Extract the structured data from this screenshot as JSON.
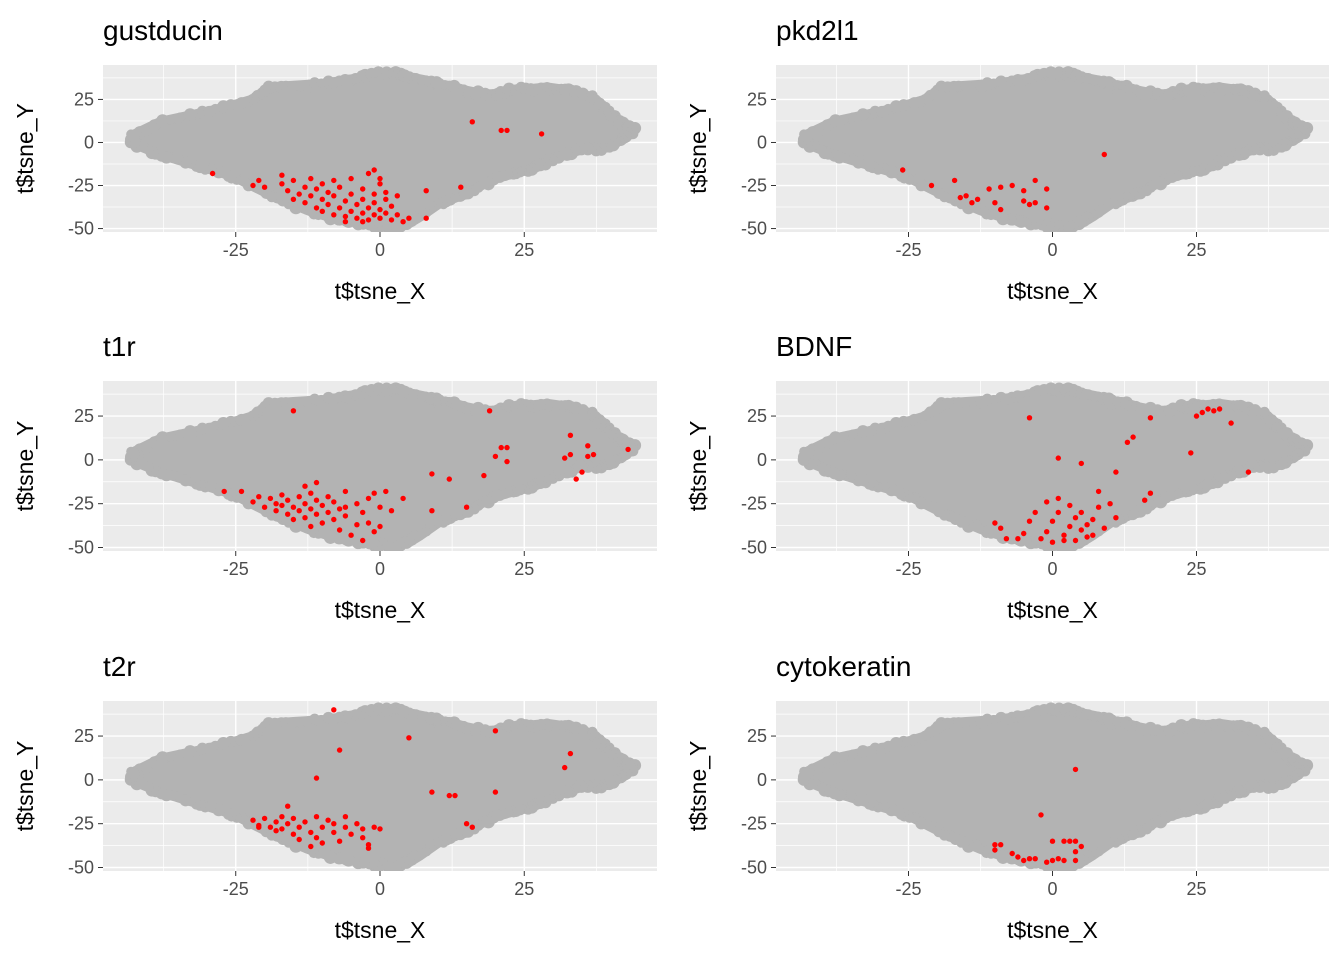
{
  "figure": {
    "background": "#FFFFFF",
    "panel_background": "#EBEBEB",
    "grid_color": "#FFFFFF",
    "background_cloud_color": "#B3B3B3",
    "highlight_color": "#FF0000"
  },
  "chart_data": [
    {
      "type": "scatter",
      "title": "gustducin",
      "xlabel": "t$tsne_X",
      "ylabel": "t$tsne_Y",
      "xlim": [
        -48,
        48
      ],
      "ylim": [
        -52,
        45
      ],
      "xticks": [
        -25,
        0,
        25
      ],
      "xtick_labels": [
        "-25",
        "0",
        "25"
      ],
      "yticks": [
        -50,
        -25,
        0,
        25
      ],
      "ytick_labels": [
        "-50",
        "-25",
        "0",
        "25"
      ],
      "grid": true,
      "highlighted_points": [
        [
          -29,
          -18
        ],
        [
          -22,
          -25
        ],
        [
          -21,
          -22
        ],
        [
          -20,
          -26
        ],
        [
          -17,
          -24
        ],
        [
          -17,
          -19
        ],
        [
          -16,
          -28
        ],
        [
          -15,
          -33
        ],
        [
          -15,
          -22
        ],
        [
          -14,
          -30
        ],
        [
          -13,
          -35
        ],
        [
          -13,
          -26
        ],
        [
          -12,
          -21
        ],
        [
          -12,
          -31
        ],
        [
          -11,
          -38
        ],
        [
          -11,
          -27
        ],
        [
          -10,
          -24
        ],
        [
          -10,
          -33
        ],
        [
          -10,
          -40
        ],
        [
          -9,
          -29
        ],
        [
          -9,
          -36
        ],
        [
          -8,
          -22
        ],
        [
          -8,
          -42
        ],
        [
          -8,
          -31
        ],
        [
          -7,
          -38
        ],
        [
          -7,
          -26
        ],
        [
          -6,
          -34
        ],
        [
          -6,
          -43
        ],
        [
          -5,
          -30
        ],
        [
          -5,
          -40
        ],
        [
          -5,
          -21
        ],
        [
          -4,
          -36
        ],
        [
          -4,
          -44
        ],
        [
          -3,
          -27
        ],
        [
          -3,
          -33
        ],
        [
          -3,
          -41
        ],
        [
          -2,
          -18
        ],
        [
          -2,
          -38
        ],
        [
          -2,
          -45
        ],
        [
          -1,
          -30
        ],
        [
          -1,
          -35
        ],
        [
          -1,
          -42
        ],
        [
          0,
          -24
        ],
        [
          0,
          -39
        ],
        [
          0,
          -44
        ],
        [
          1,
          -33
        ],
        [
          1,
          -29
        ],
        [
          1,
          -41
        ],
        [
          2,
          -37
        ],
        [
          2,
          -45
        ],
        [
          3,
          -31
        ],
        [
          3,
          -42
        ],
        [
          4,
          -46
        ],
        [
          5,
          -44
        ],
        [
          8,
          -28
        ],
        [
          8,
          -44
        ],
        [
          14,
          -26
        ],
        [
          16,
          12
        ],
        [
          21,
          7
        ],
        [
          22,
          7
        ],
        [
          28,
          5
        ],
        [
          -1,
          -16
        ],
        [
          0,
          -21
        ],
        [
          -3,
          -46
        ],
        [
          -6,
          -46
        ]
      ]
    },
    {
      "type": "scatter",
      "title": "pkd2l1",
      "xlabel": "t$tsne_X",
      "ylabel": "t$tsne_Y",
      "xlim": [
        -48,
        48
      ],
      "ylim": [
        -52,
        45
      ],
      "xticks": [
        -25,
        0,
        25
      ],
      "xtick_labels": [
        "-25",
        "0",
        "25"
      ],
      "yticks": [
        -50,
        -25,
        0,
        25
      ],
      "ytick_labels": [
        "-50",
        "-25",
        "0",
        "25"
      ],
      "grid": true,
      "highlighted_points": [
        [
          -26,
          -16
        ],
        [
          -21,
          -25
        ],
        [
          -17,
          -22
        ],
        [
          -16,
          -32
        ],
        [
          -15,
          -31
        ],
        [
          -14,
          -35
        ],
        [
          -11,
          -27
        ],
        [
          -10,
          -35
        ],
        [
          -9,
          -26
        ],
        [
          -9,
          -39
        ],
        [
          -7,
          -25
        ],
        [
          -5,
          -28
        ],
        [
          -5,
          -34
        ],
        [
          -4,
          -36
        ],
        [
          -3,
          -22
        ],
        [
          -3,
          -35
        ],
        [
          -1,
          -27
        ],
        [
          -1,
          -38
        ],
        [
          9,
          -7
        ],
        [
          -13,
          -33
        ]
      ]
    },
    {
      "type": "scatter",
      "title": "t1r",
      "xlabel": "t$tsne_X",
      "ylabel": "t$tsne_Y",
      "xlim": [
        -48,
        48
      ],
      "ylim": [
        -52,
        45
      ],
      "xticks": [
        -25,
        0,
        25
      ],
      "xtick_labels": [
        "-25",
        "0",
        "25"
      ],
      "yticks": [
        -50,
        -25,
        0,
        25
      ],
      "ytick_labels": [
        "-50",
        "-25",
        "0",
        "25"
      ],
      "grid": true,
      "highlighted_points": [
        [
          -27,
          -18
        ],
        [
          -24,
          -18
        ],
        [
          -22,
          -24
        ],
        [
          -21,
          -21
        ],
        [
          -20,
          -27
        ],
        [
          -19,
          -22
        ],
        [
          -18,
          -25
        ],
        [
          -18,
          -29
        ],
        [
          -17,
          -20
        ],
        [
          -17,
          -26
        ],
        [
          -16,
          -31
        ],
        [
          -16,
          -23
        ],
        [
          -15,
          -27
        ],
        [
          -15,
          -34
        ],
        [
          -14,
          -21
        ],
        [
          -14,
          -29
        ],
        [
          -13,
          -25
        ],
        [
          -13,
          -33
        ],
        [
          -12,
          -19
        ],
        [
          -12,
          -28
        ],
        [
          -12,
          -38
        ],
        [
          -11,
          -23
        ],
        [
          -11,
          -31
        ],
        [
          -10,
          -26
        ],
        [
          -10,
          -36
        ],
        [
          -9,
          -21
        ],
        [
          -9,
          -30
        ],
        [
          -8,
          -34
        ],
        [
          -8,
          -24
        ],
        [
          -7,
          -28
        ],
        [
          -7,
          -40
        ],
        [
          -6,
          -18
        ],
        [
          -6,
          -32
        ],
        [
          -5,
          -43
        ],
        [
          -4,
          -25
        ],
        [
          -4,
          -37
        ],
        [
          -3,
          -30
        ],
        [
          -3,
          -46
        ],
        [
          -2,
          -36
        ],
        [
          -1,
          -19
        ],
        [
          -1,
          -41
        ],
        [
          0,
          -27
        ],
        [
          0,
          -38
        ],
        [
          1,
          -18
        ],
        [
          2,
          -29
        ],
        [
          -11,
          -13
        ],
        [
          -15,
          28
        ],
        [
          -13,
          -15
        ],
        [
          -6,
          -27
        ],
        [
          9,
          -8
        ],
        [
          9,
          -29
        ],
        [
          12,
          -11
        ],
        [
          15,
          -27
        ],
        [
          18,
          -9
        ],
        [
          19,
          28
        ],
        [
          21,
          7
        ],
        [
          22,
          7
        ],
        [
          22,
          -1
        ],
        [
          20,
          2
        ],
        [
          32,
          1
        ],
        [
          33,
          14
        ],
        [
          33,
          3
        ],
        [
          34,
          -11
        ],
        [
          35,
          -7
        ],
        [
          36,
          2
        ],
        [
          36,
          8
        ],
        [
          37,
          3
        ],
        [
          43,
          6
        ],
        [
          -2,
          -22
        ],
        [
          4,
          -22
        ]
      ]
    },
    {
      "type": "scatter",
      "title": "BDNF",
      "xlabel": "t$tsne_X",
      "ylabel": "t$tsne_Y",
      "xlim": [
        -48,
        48
      ],
      "ylim": [
        -52,
        45
      ],
      "xticks": [
        -25,
        0,
        25
      ],
      "xtick_labels": [
        "-25",
        "0",
        "25"
      ],
      "yticks": [
        -50,
        -25,
        0,
        25
      ],
      "ytick_labels": [
        "-50",
        "-25",
        "0",
        "25"
      ],
      "grid": true,
      "highlighted_points": [
        [
          -10,
          -36
        ],
        [
          -9,
          -39
        ],
        [
          -6,
          -45
        ],
        [
          -5,
          -42
        ],
        [
          -4,
          -35
        ],
        [
          -3,
          -30
        ],
        [
          -2,
          -45
        ],
        [
          -1,
          -41
        ],
        [
          -1,
          -24
        ],
        [
          0,
          -35
        ],
        [
          0,
          -47
        ],
        [
          1,
          -22
        ],
        [
          1,
          -30
        ],
        [
          2,
          -43
        ],
        [
          3,
          -38
        ],
        [
          3,
          -26
        ],
        [
          4,
          -33
        ],
        [
          4,
          -46
        ],
        [
          5,
          -40
        ],
        [
          5,
          -30
        ],
        [
          6,
          -44
        ],
        [
          6,
          -37
        ],
        [
          7,
          -34
        ],
        [
          7,
          -43
        ],
        [
          8,
          -27
        ],
        [
          9,
          -39
        ],
        [
          10,
          -25
        ],
        [
          11,
          -33
        ],
        [
          -4,
          24
        ],
        [
          1,
          1
        ],
        [
          5,
          -2
        ],
        [
          8,
          -18
        ],
        [
          11,
          -7
        ],
        [
          13,
          10
        ],
        [
          14,
          13
        ],
        [
          16,
          -23
        ],
        [
          17,
          -19
        ],
        [
          17,
          24
        ],
        [
          24,
          4
        ],
        [
          25,
          25
        ],
        [
          26,
          27
        ],
        [
          27,
          29
        ],
        [
          28,
          28
        ],
        [
          29,
          29
        ],
        [
          31,
          21
        ],
        [
          34,
          -7
        ],
        [
          -8,
          -45
        ],
        [
          2,
          -46
        ]
      ]
    },
    {
      "type": "scatter",
      "title": "t2r",
      "xlabel": "t$tsne_X",
      "ylabel": "t$tsne_Y",
      "xlim": [
        -48,
        48
      ],
      "ylim": [
        -52,
        45
      ],
      "xticks": [
        -25,
        0,
        25
      ],
      "xtick_labels": [
        "-25",
        "0",
        "25"
      ],
      "yticks": [
        -50,
        -25,
        0,
        25
      ],
      "ytick_labels": [
        "-50",
        "-25",
        "0",
        "25"
      ],
      "grid": true,
      "highlighted_points": [
        [
          -22,
          -23
        ],
        [
          -21,
          -26
        ],
        [
          -20,
          -22
        ],
        [
          -19,
          -27
        ],
        [
          -18,
          -24
        ],
        [
          -17,
          -28
        ],
        [
          -17,
          -21
        ],
        [
          -16,
          -25
        ],
        [
          -15,
          -31
        ],
        [
          -15,
          -22
        ],
        [
          -14,
          -27
        ],
        [
          -14,
          -34
        ],
        [
          -13,
          -24
        ],
        [
          -12,
          -30
        ],
        [
          -12,
          -38
        ],
        [
          -11,
          -21
        ],
        [
          -11,
          -33
        ],
        [
          -10,
          -27
        ],
        [
          -10,
          -36
        ],
        [
          -9,
          -23
        ],
        [
          -8,
          -30
        ],
        [
          -8,
          -25
        ],
        [
          -7,
          -35
        ],
        [
          -6,
          -27
        ],
        [
          -6,
          -21
        ],
        [
          -5,
          -31
        ],
        [
          -4,
          -25
        ],
        [
          -3,
          -33
        ],
        [
          -3,
          -28
        ],
        [
          -2,
          -37
        ],
        [
          -1,
          -27
        ],
        [
          0,
          -28
        ],
        [
          -21,
          -27
        ],
        [
          -18,
          -29
        ],
        [
          -16,
          -15
        ],
        [
          -11,
          1
        ],
        [
          -8,
          40
        ],
        [
          -7,
          17
        ],
        [
          -2,
          -39
        ],
        [
          5,
          24
        ],
        [
          9,
          -7
        ],
        [
          12,
          -9
        ],
        [
          13,
          -9
        ],
        [
          15,
          -25
        ],
        [
          16,
          -27
        ],
        [
          20,
          -7
        ],
        [
          20,
          28
        ],
        [
          32,
          7
        ],
        [
          33,
          15
        ]
      ]
    },
    {
      "type": "scatter",
      "title": "cytokeratin",
      "xlabel": "t$tsne_X",
      "ylabel": "t$tsne_Y",
      "xlim": [
        -48,
        48
      ],
      "ylim": [
        -52,
        45
      ],
      "xticks": [
        -25,
        0,
        25
      ],
      "xtick_labels": [
        "-25",
        "0",
        "25"
      ],
      "yticks": [
        -50,
        -25,
        0,
        25
      ],
      "ytick_labels": [
        "-50",
        "-25",
        "0",
        "25"
      ],
      "grid": true,
      "highlighted_points": [
        [
          -10,
          -37
        ],
        [
          -10,
          -40
        ],
        [
          -9,
          -37
        ],
        [
          -7,
          -42
        ],
        [
          -6,
          -44
        ],
        [
          -4,
          -45
        ],
        [
          -3,
          -45
        ],
        [
          -2,
          -20
        ],
        [
          -1,
          -47
        ],
        [
          0,
          -35
        ],
        [
          0,
          -46
        ],
        [
          1,
          -45
        ],
        [
          2,
          -46
        ],
        [
          2,
          -35
        ],
        [
          3,
          -35
        ],
        [
          4,
          -35
        ],
        [
          4,
          -46
        ],
        [
          4,
          -41
        ],
        [
          5,
          -38
        ],
        [
          4,
          6
        ],
        [
          -5,
          -46
        ]
      ]
    }
  ]
}
